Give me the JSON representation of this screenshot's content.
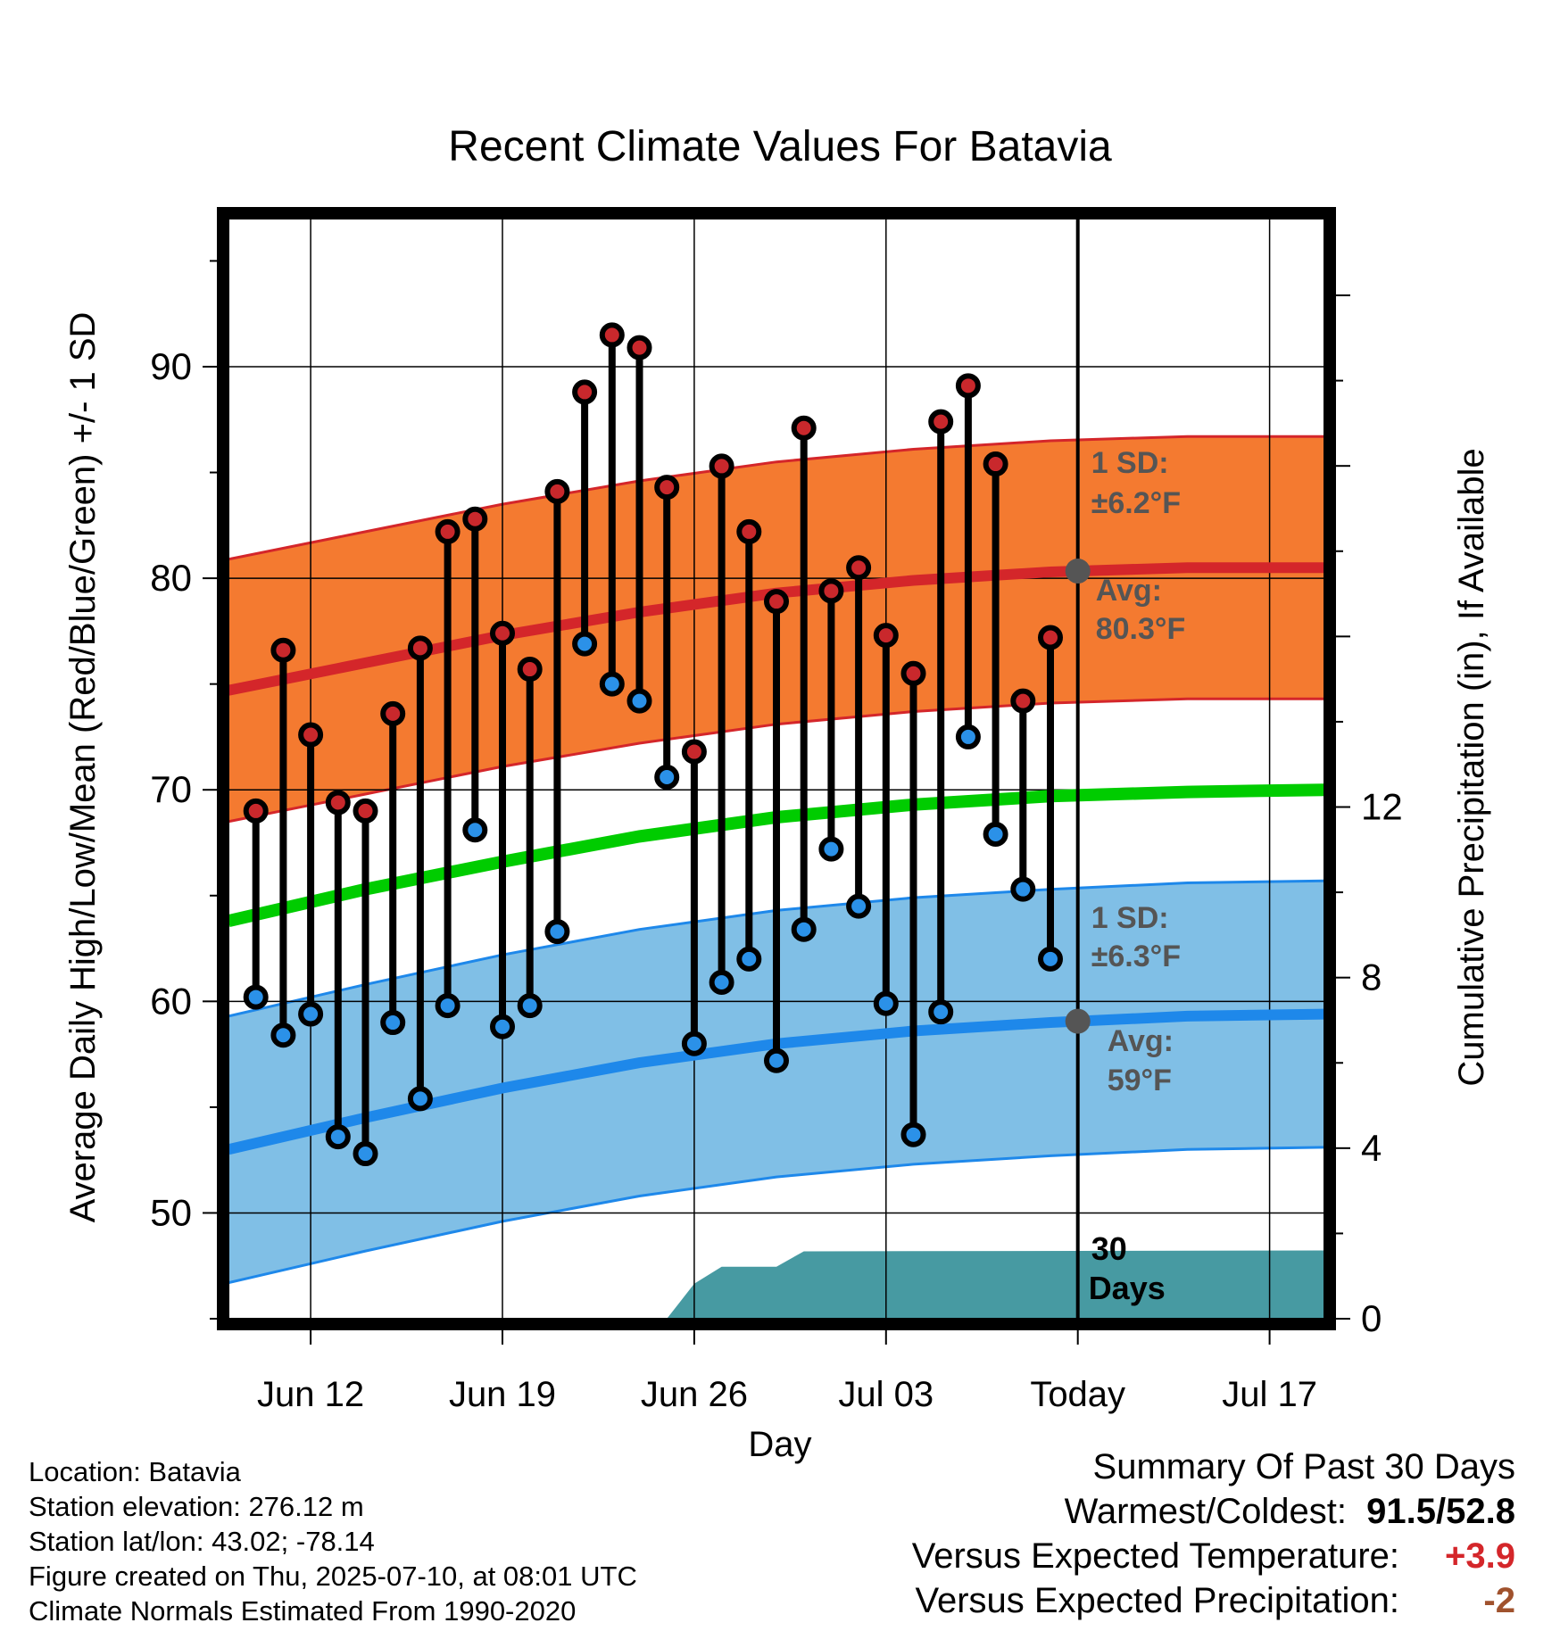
{
  "chart_data": {
    "type": "line",
    "title": "Recent Climate Values For Batavia",
    "xlabel": "Day",
    "ylabel": "Average Daily High/Low/Mean (Red/Blue/Green) +/- 1 SD",
    "y2label": "Cumulative Precipitation (in), If Available",
    "ylim": [
      45,
      97
    ],
    "y2lim": [
      0,
      25.8
    ],
    "yticks": [
      50,
      60,
      70,
      80,
      90
    ],
    "y2ticks": [
      0,
      4,
      8,
      12
    ],
    "xticks": [
      "Jun 12",
      "Jun 19",
      "Jun 26",
      "Jul 03",
      "Today",
      "Jul 17"
    ],
    "xtick_dates": [
      "2025-06-12",
      "2025-06-19",
      "2025-06-26",
      "2025-07-03",
      "2025-07-10",
      "2025-07-17"
    ],
    "x_range": [
      "2025-06-09",
      "2025-07-19"
    ],
    "grid": true,
    "today": "2025-07-10",
    "daily": [
      {
        "date": "2025-06-10",
        "high": 69.0,
        "low": 60.2
      },
      {
        "date": "2025-06-11",
        "high": 76.6,
        "low": 58.4
      },
      {
        "date": "2025-06-12",
        "high": 72.6,
        "low": 59.4
      },
      {
        "date": "2025-06-13",
        "high": 69.4,
        "low": 53.6
      },
      {
        "date": "2025-06-14",
        "high": 69.0,
        "low": 52.8
      },
      {
        "date": "2025-06-15",
        "high": 73.6,
        "low": 59.0
      },
      {
        "date": "2025-06-16",
        "high": 76.7,
        "low": 55.4
      },
      {
        "date": "2025-06-17",
        "high": 82.2,
        "low": 59.8
      },
      {
        "date": "2025-06-18",
        "high": 82.8,
        "low": 68.1
      },
      {
        "date": "2025-06-19",
        "high": 77.4,
        "low": 58.8
      },
      {
        "date": "2025-06-20",
        "high": 75.7,
        "low": 59.8
      },
      {
        "date": "2025-06-21",
        "high": 84.1,
        "low": 63.3
      },
      {
        "date": "2025-06-22",
        "high": 88.8,
        "low": 76.9
      },
      {
        "date": "2025-06-23",
        "high": 91.5,
        "low": 75.0
      },
      {
        "date": "2025-06-24",
        "high": 90.9,
        "low": 74.2
      },
      {
        "date": "2025-06-25",
        "high": 84.3,
        "low": 70.6
      },
      {
        "date": "2025-06-26",
        "high": 71.8,
        "low": 58.0
      },
      {
        "date": "2025-06-27",
        "high": 85.3,
        "low": 60.9
      },
      {
        "date": "2025-06-28",
        "high": 82.2,
        "low": 62.0
      },
      {
        "date": "2025-06-29",
        "high": 78.9,
        "low": 57.2
      },
      {
        "date": "2025-06-30",
        "high": 87.1,
        "low": 63.4
      },
      {
        "date": "2025-07-01",
        "high": 79.4,
        "low": 67.2
      },
      {
        "date": "2025-07-02",
        "high": 80.5,
        "low": 64.5
      },
      {
        "date": "2025-07-03",
        "high": 77.3,
        "low": 59.9
      },
      {
        "date": "2025-07-04",
        "high": 75.5,
        "low": 53.7
      },
      {
        "date": "2025-07-05",
        "high": 87.4,
        "low": 59.5
      },
      {
        "date": "2025-07-06",
        "high": 89.1,
        "low": 72.5
      },
      {
        "date": "2025-07-07",
        "high": 85.4,
        "low": 67.9
      },
      {
        "date": "2025-07-08",
        "high": 74.2,
        "low": 65.3
      },
      {
        "date": "2025-07-09",
        "high": 77.2,
        "low": 62.0
      }
    ],
    "normals": {
      "dates": [
        "2025-06-09",
        "2025-06-14",
        "2025-06-19",
        "2025-06-24",
        "2025-06-29",
        "2025-07-04",
        "2025-07-09",
        "2025-07-14",
        "2025-07-19"
      ],
      "high_mean": [
        74.7,
        76.0,
        77.3,
        78.4,
        79.3,
        79.9,
        80.3,
        80.5,
        80.5
      ],
      "high_sd": 6.2,
      "low_mean": [
        53.0,
        54.5,
        55.9,
        57.1,
        58.0,
        58.6,
        59.0,
        59.3,
        59.4
      ],
      "low_sd": 6.3,
      "mean": [
        63.8,
        65.3,
        66.6,
        67.8,
        68.7,
        69.3,
        69.7,
        69.9,
        70.0
      ]
    },
    "precipitation": {
      "dates": [
        "2025-06-25",
        "2025-06-26",
        "2025-06-27",
        "2025-06-28",
        "2025-06-29",
        "2025-06-30",
        "2025-07-19"
      ],
      "cumulative": [
        0.0,
        0.82,
        1.22,
        1.22,
        1.22,
        1.58,
        1.6
      ]
    },
    "annotations": {
      "high_sd_label": "1 SD:",
      "high_sd_value": "±6.2°F",
      "high_avg_label": "Avg:",
      "high_avg_value": "80.3°F",
      "low_sd_label": "1 SD:",
      "low_sd_value": "±6.3°F",
      "low_avg_label": "Avg:",
      "low_avg_value": "59°F",
      "precip_period_1": "30",
      "precip_period_2": "Days"
    },
    "colors": {
      "high_band": "#f47a30",
      "high_line": "#d4262a",
      "low_band": "#80bfe6",
      "low_line": "#1e88ea",
      "mean_line": "#00cc00",
      "precip": "#479aa2",
      "high_marker": "#c9282c",
      "low_marker": "#2b91e8",
      "today_marker": "#555555"
    }
  },
  "footer": {
    "location": "Location: Batavia",
    "elevation": "Station elevation: 276.12 m",
    "latlon": "Station lat/lon: 43.02; -78.14",
    "created": "Figure created on Thu, 2025-07-10, at 08:01 UTC",
    "normals": "Climate Normals Estimated From 1990-2020"
  },
  "summary": {
    "title": "Summary Of Past 30 Days",
    "warmest_label": "Warmest/Coldest:",
    "warmest_value": "91.5/52.8",
    "temp_label": "Versus Expected Temperature:",
    "temp_value": "+3.9",
    "temp_color": "#d4262a",
    "precip_label": "Versus Expected Precipitation:",
    "precip_value": "-2",
    "precip_color": "#a0522d"
  }
}
